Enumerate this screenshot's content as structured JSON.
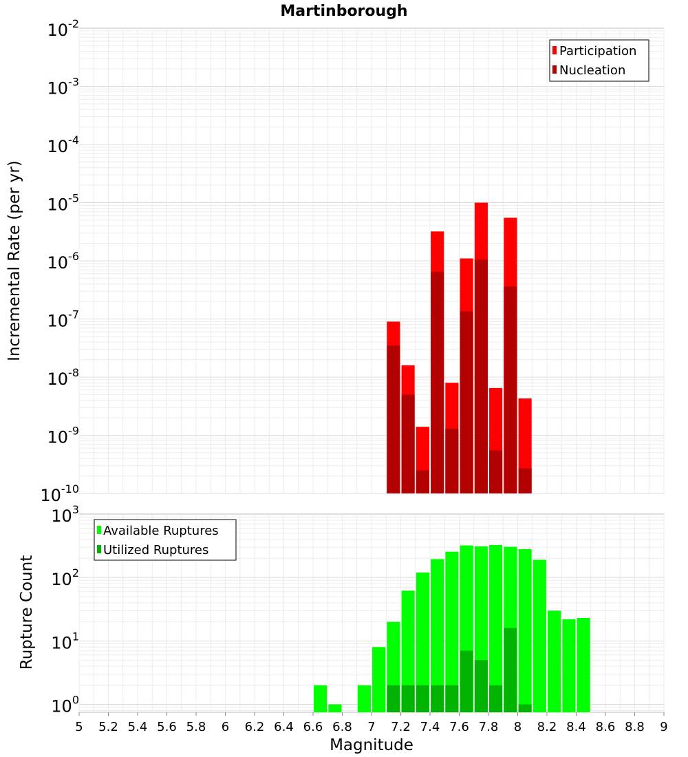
{
  "chart_data": [
    {
      "type": "bar",
      "title": "Martinborough",
      "xlabel": "",
      "ylabel": "Incremental Rate (per yr)",
      "yscale": "log",
      "ylim": [
        1e-10,
        0.01
      ],
      "xlim": [
        5,
        9
      ],
      "grid": true,
      "legend_position": "top-right",
      "ytick_exponents": [
        "-10",
        "-9",
        "-8",
        "-7",
        "-6",
        "-5",
        "-4",
        "-3",
        "-2"
      ],
      "x": [
        7.15,
        7.25,
        7.35,
        7.45,
        7.55,
        7.65,
        7.75,
        7.85,
        7.95,
        8.05
      ],
      "series": [
        {
          "name": "Participation",
          "color": "#ff0000",
          "values": [
            9e-08,
            1.6e-08,
            1.4e-09,
            3.2e-06,
            8e-09,
            1.1e-06,
            1e-05,
            6.5e-09,
            5.5e-06,
            4.3e-09
          ]
        },
        {
          "name": "Nucleation",
          "color": "#b30000",
          "values": [
            3.5e-08,
            5e-09,
            2.5e-10,
            6.5e-07,
            1.3e-09,
            1.35e-07,
            1.05e-06,
            5.5e-10,
            3.6e-07,
            2.7e-10
          ]
        }
      ]
    },
    {
      "type": "bar",
      "title": "",
      "xlabel": "Magnitude",
      "ylabel": "Rupture Count",
      "yscale": "log",
      "ylim": [
        0.75,
        1000
      ],
      "xlim": [
        5,
        9
      ],
      "grid": true,
      "legend_position": "top-left",
      "ytick_exponents": [
        "0",
        "1",
        "2",
        "3"
      ],
      "xtick_labels": [
        "5",
        "5.2",
        "5.4",
        "5.6",
        "5.8",
        "6",
        "6.2",
        "6.4",
        "6.6",
        "6.8",
        "7",
        "7.2",
        "7.4",
        "7.6",
        "7.8",
        "8",
        "8.2",
        "8.4",
        "8.6",
        "8.8",
        "9"
      ],
      "series": [
        {
          "name": "Available Ruptures",
          "color": "#00ff00",
          "x": [
            6.65,
            6.75,
            6.95,
            7.05,
            7.15,
            7.25,
            7.35,
            7.45,
            7.55,
            7.65,
            7.75,
            7.85,
            7.95,
            8.05,
            8.15,
            8.25,
            8.35,
            8.45
          ],
          "values": [
            2,
            1,
            2,
            8,
            20,
            62,
            120,
            195,
            255,
            320,
            310,
            325,
            305,
            280,
            190,
            30,
            22,
            23
          ]
        },
        {
          "name": "Utilized Ruptures",
          "color": "#00b300",
          "x": [
            7.15,
            7.25,
            7.35,
            7.45,
            7.55,
            7.65,
            7.75,
            7.85,
            7.95,
            8.05
          ],
          "values": [
            2,
            2,
            2,
            2,
            2,
            7,
            5,
            2,
            16,
            1
          ]
        }
      ]
    }
  ]
}
